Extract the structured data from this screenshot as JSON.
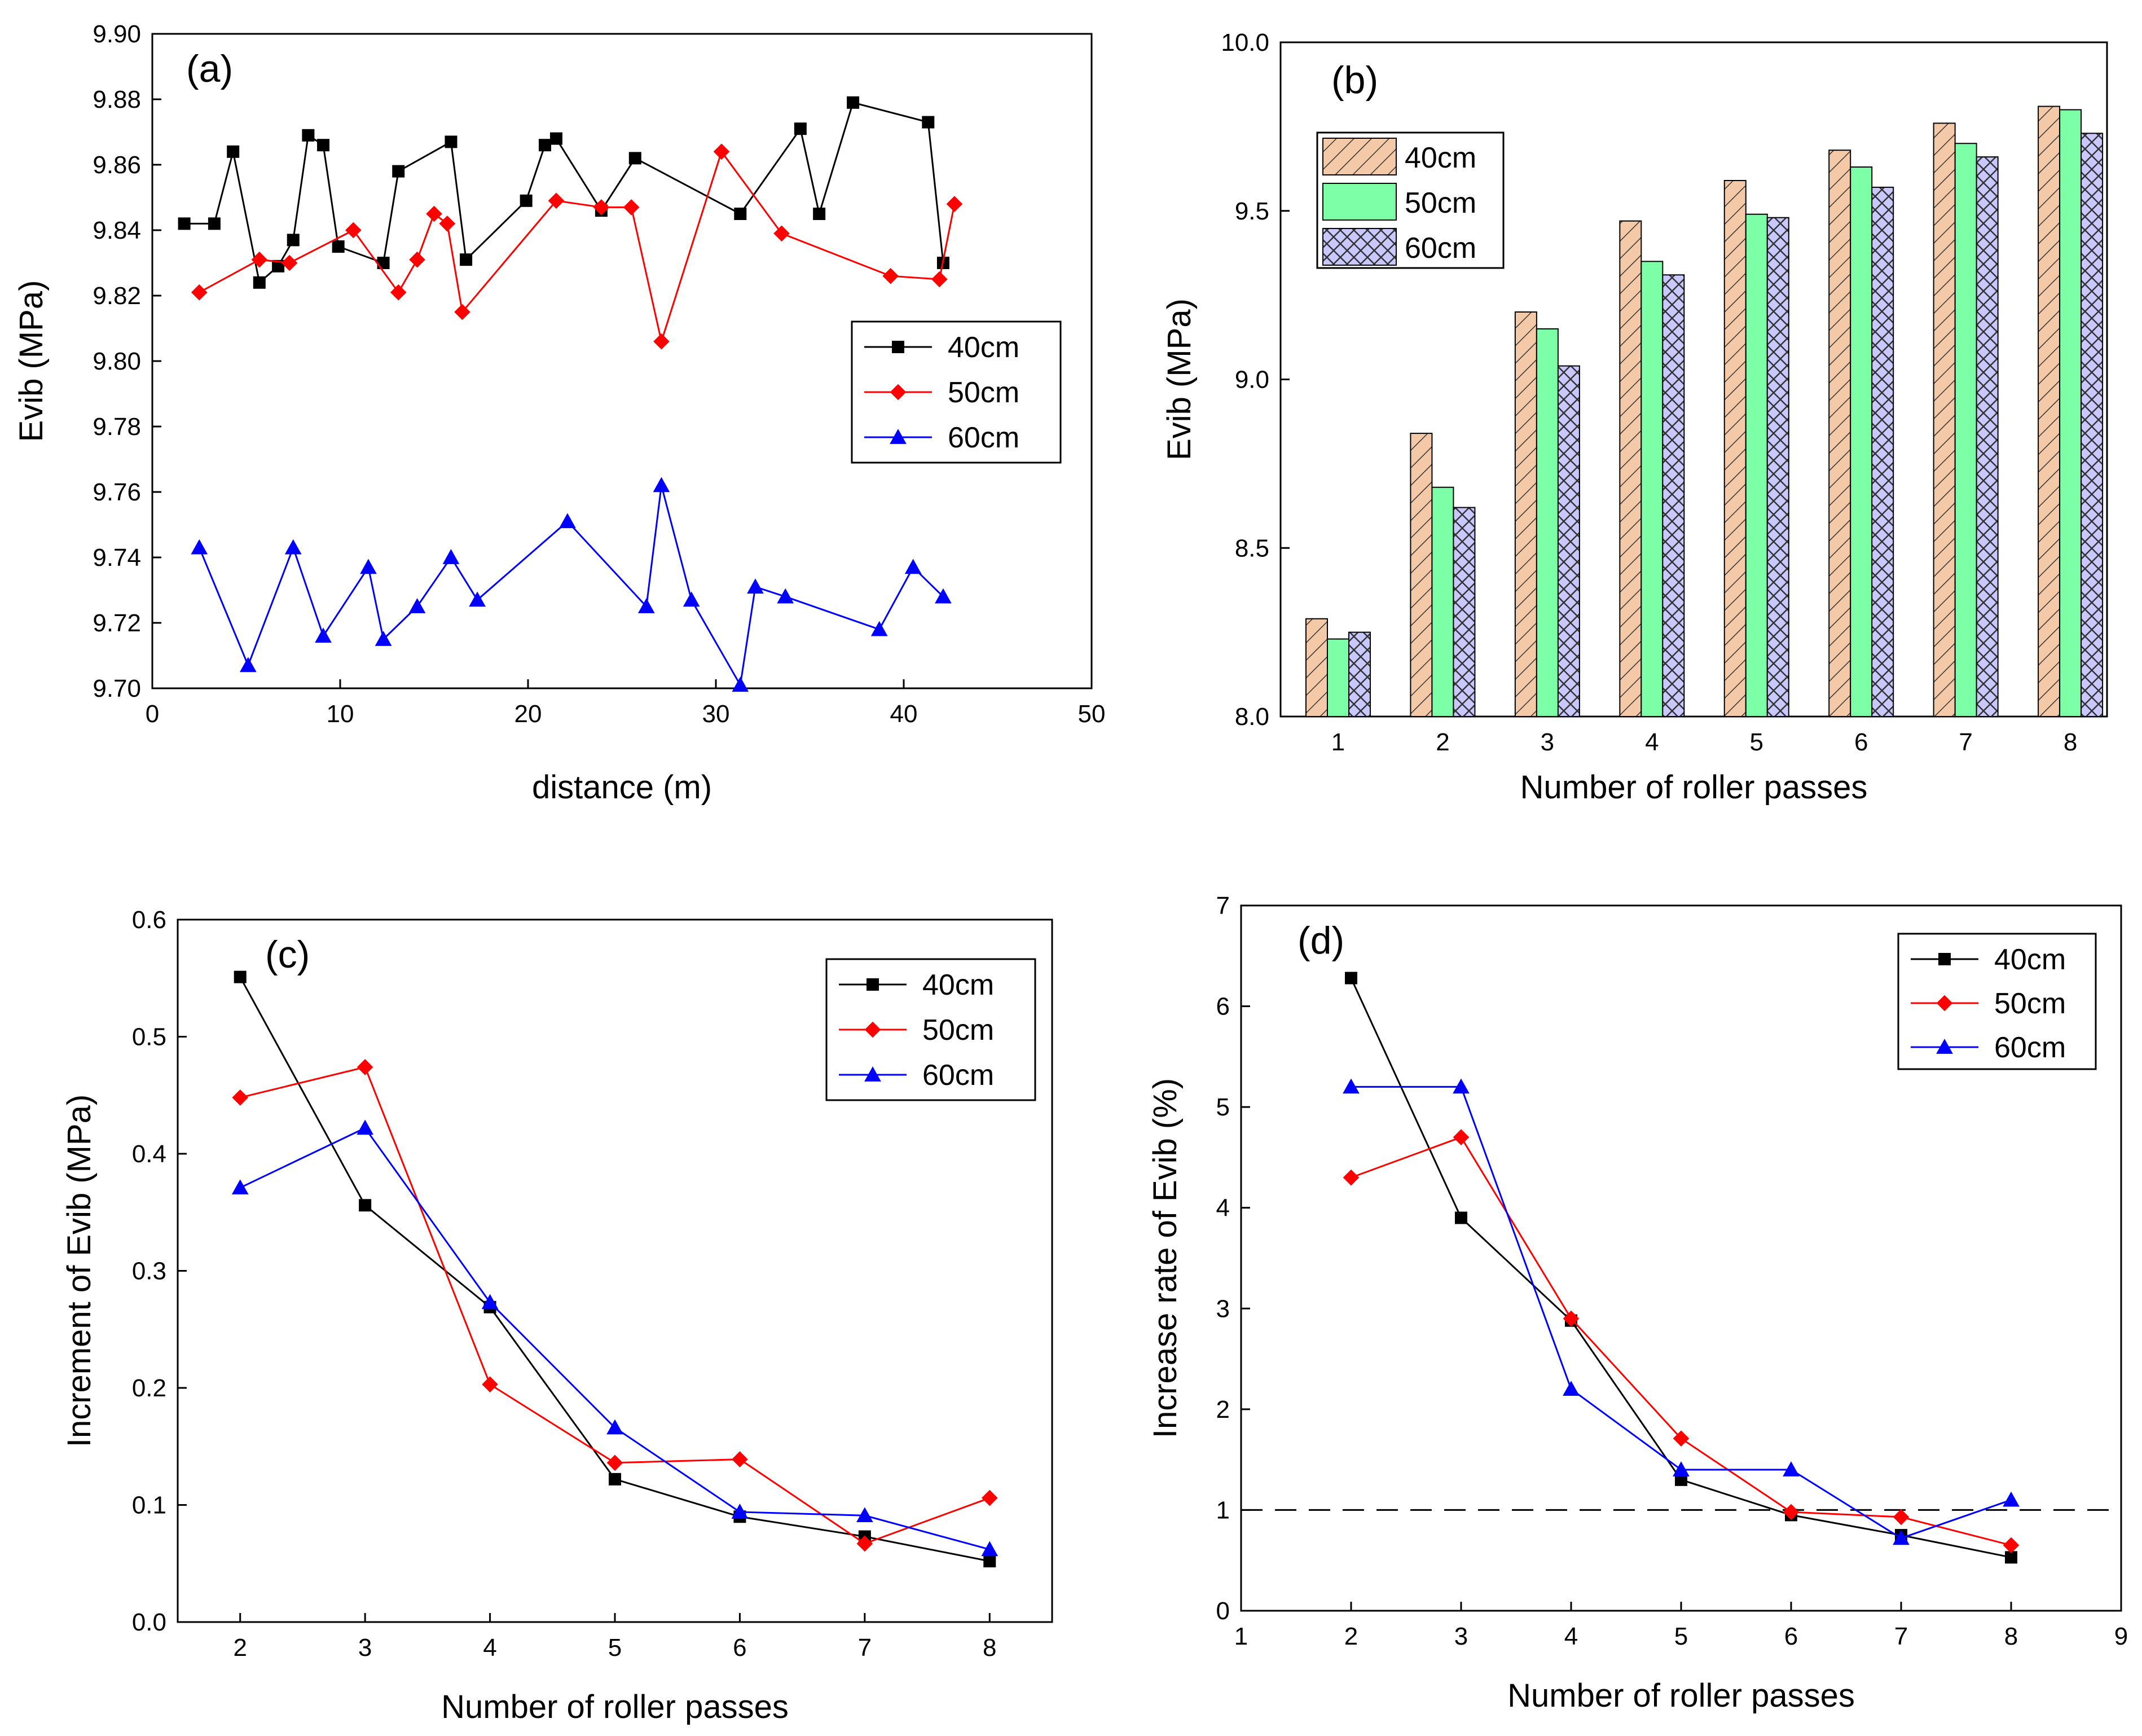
{
  "colors": {
    "s40": "#000000",
    "s50": "#ff0000",
    "s60": "#0000ff",
    "bar40": "#f4c9a8",
    "bar50": "#7dffa8",
    "bar60": "#c8c8ff"
  },
  "chart_data": [
    {
      "id": "a",
      "type": "line",
      "panel_label": "(a)",
      "xlabel": "distance (m)",
      "ylabel": "Evib (MPa)",
      "xlim": [
        0,
        50
      ],
      "ylim": [
        9.7,
        9.9
      ],
      "xticks": [
        0,
        10,
        20,
        30,
        40,
        50
      ],
      "yticks": [
        9.7,
        9.72,
        9.74,
        9.76,
        9.78,
        9.8,
        9.82,
        9.84,
        9.86,
        9.88,
        9.9
      ],
      "ytick_decimals": 2,
      "legend_position": "center-right",
      "series": [
        {
          "name": "40cm",
          "marker": "square",
          "color_key": "s40",
          "x": [
            1.7,
            3.3,
            4.3,
            5.7,
            6.7,
            7.5,
            8.3,
            9.1,
            9.9,
            12.3,
            13.1,
            15.9,
            16.7,
            19.9,
            20.9,
            21.5,
            23.9,
            25.7,
            31.3,
            34.5,
            35.5,
            37.3,
            41.3,
            42.1
          ],
          "y": [
            9.842,
            9.842,
            9.864,
            9.824,
            9.829,
            9.837,
            9.869,
            9.866,
            9.835,
            9.83,
            9.858,
            9.867,
            9.831,
            9.849,
            9.866,
            9.868,
            9.846,
            9.862,
            9.845,
            9.871,
            9.845,
            9.879,
            9.873,
            9.83
          ]
        },
        {
          "name": "50cm",
          "marker": "diamond",
          "color_key": "s50",
          "x": [
            2.5,
            5.7,
            7.3,
            10.7,
            13.1,
            14.1,
            15.0,
            15.7,
            16.5,
            21.5,
            23.9,
            25.5,
            27.1,
            30.3,
            33.5,
            39.3,
            41.9,
            42.7
          ],
          "y": [
            9.821,
            9.831,
            9.83,
            9.84,
            9.821,
            9.831,
            9.845,
            9.842,
            9.815,
            9.849,
            9.847,
            9.847,
            9.806,
            9.864,
            9.839,
            9.826,
            9.825,
            9.848
          ]
        },
        {
          "name": "60cm",
          "marker": "triangle",
          "color_key": "s60",
          "x": [
            2.5,
            5.1,
            7.5,
            9.1,
            11.5,
            12.3,
            14.1,
            15.9,
            17.3,
            22.1,
            26.3,
            27.1,
            28.7,
            31.3,
            32.1,
            33.7,
            38.7,
            40.5,
            42.1
          ],
          "y": [
            9.743,
            9.707,
            9.743,
            9.716,
            9.737,
            9.715,
            9.725,
            9.74,
            9.727,
            9.751,
            9.725,
            9.762,
            9.727,
            9.701,
            9.731,
            9.728,
            9.718,
            9.737,
            9.728
          ]
        }
      ]
    },
    {
      "id": "b",
      "type": "bar",
      "panel_label": "(b)",
      "xlabel": "Number of roller passes",
      "ylabel": "Evib (MPa)",
      "categories": [
        "1",
        "2",
        "3",
        "4",
        "5",
        "6",
        "7",
        "8"
      ],
      "ylim": [
        8.0,
        10.0
      ],
      "yticks": [
        8.0,
        8.5,
        9.0,
        9.5,
        10.0
      ],
      "ytick_decimals": 1,
      "legend_position": "top-left",
      "series": [
        {
          "name": "40cm",
          "pattern": "diagonal",
          "color_key": "bar40",
          "values": [
            8.29,
            8.84,
            9.2,
            9.47,
            9.59,
            9.68,
            9.76,
            9.81
          ]
        },
        {
          "name": "50cm",
          "pattern": "solid",
          "color_key": "bar50",
          "values": [
            8.23,
            8.68,
            9.15,
            9.35,
            9.49,
            9.63,
            9.7,
            9.8
          ]
        },
        {
          "name": "60cm",
          "pattern": "crosshatch",
          "color_key": "bar60",
          "values": [
            8.25,
            8.62,
            9.04,
            9.31,
            9.48,
            9.57,
            9.66,
            9.73
          ]
        }
      ]
    },
    {
      "id": "c",
      "type": "line",
      "panel_label": "(c)",
      "xlabel": "Number of roller passes",
      "ylabel": "Increment of Evib (MPa)",
      "xlim": [
        1.5,
        8.5
      ],
      "ylim": [
        0.0,
        0.6
      ],
      "xticks": [
        2,
        3,
        4,
        5,
        6,
        7,
        8
      ],
      "yticks": [
        0.0,
        0.1,
        0.2,
        0.3,
        0.4,
        0.5,
        0.6
      ],
      "ytick_decimals": 1,
      "legend_position": "top-right",
      "series": [
        {
          "name": "40cm",
          "marker": "square",
          "color_key": "s40",
          "x": [
            2,
            3,
            4,
            5,
            6,
            7,
            8
          ],
          "y": [
            0.551,
            0.356,
            0.269,
            0.122,
            0.09,
            0.073,
            0.052
          ]
        },
        {
          "name": "50cm",
          "marker": "diamond",
          "color_key": "s50",
          "x": [
            2,
            3,
            4,
            5,
            6,
            7,
            8
          ],
          "y": [
            0.448,
            0.474,
            0.203,
            0.136,
            0.139,
            0.067,
            0.106
          ]
        },
        {
          "name": "60cm",
          "marker": "triangle",
          "color_key": "s60",
          "x": [
            2,
            3,
            4,
            5,
            6,
            7,
            8
          ],
          "y": [
            0.371,
            0.422,
            0.273,
            0.166,
            0.094,
            0.091,
            0.062
          ]
        }
      ]
    },
    {
      "id": "d",
      "type": "line",
      "panel_label": "(d)",
      "xlabel": "Number of roller passes",
      "ylabel": "Increase rate of Evib (%)",
      "xlim": [
        1,
        9
      ],
      "ylim": [
        0,
        7
      ],
      "xticks": [
        1,
        2,
        3,
        4,
        5,
        6,
        7,
        8,
        9
      ],
      "yticks": [
        0,
        1,
        2,
        3,
        4,
        5,
        6,
        7
      ],
      "ytick_decimals": 0,
      "legend_position": "top-right",
      "reference_line_y": 1,
      "series": [
        {
          "name": "40cm",
          "marker": "square",
          "color_key": "s40",
          "x": [
            2,
            3,
            4,
            5,
            6,
            7,
            8
          ],
          "y": [
            6.28,
            3.9,
            2.88,
            1.3,
            0.95,
            0.75,
            0.53
          ]
        },
        {
          "name": "50cm",
          "marker": "diamond",
          "color_key": "s50",
          "x": [
            2,
            3,
            4,
            5,
            6,
            7,
            8
          ],
          "y": [
            4.3,
            4.7,
            2.9,
            1.71,
            0.98,
            0.93,
            0.65
          ]
        },
        {
          "name": "60cm",
          "marker": "triangle",
          "color_key": "s60",
          "x": [
            2,
            3,
            4,
            5,
            6,
            7,
            8
          ],
          "y": [
            5.2,
            5.2,
            2.2,
            1.4,
            1.4,
            0.72,
            1.1
          ]
        }
      ]
    }
  ]
}
